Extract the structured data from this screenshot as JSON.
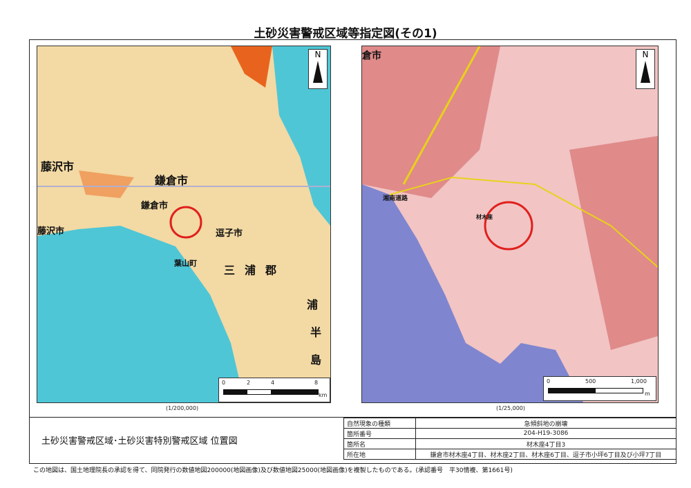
{
  "title": "土砂災害警戒区域等指定図(その1)",
  "left_map": {
    "scale_ratio": "(1/200,000)",
    "scale_ticks": [
      "0",
      "2",
      "4",
      "8"
    ],
    "scale_unit": "km",
    "north": "N",
    "labels": [
      "藤沢市",
      "鎌倉市",
      "鎌倉市",
      "藤沢市",
      "逗子市",
      "葉山町",
      "三",
      "浦",
      "郡",
      "浦",
      "半",
      "島"
    ],
    "colors": {
      "sea": "#4ec6d6",
      "land": "#f3d9a4",
      "urban": "#e8641e"
    }
  },
  "right_map": {
    "scale_ratio": "(1/25,000)",
    "scale_ticks": [
      "0",
      "500",
      "1,000"
    ],
    "scale_unit": "m",
    "north": "N",
    "labels": [
      "倉市",
      "湘南道路",
      "材木座"
    ],
    "colors": {
      "sea": "#7f86cf",
      "land": "#f2c4c4",
      "urban": "#d9534f"
    }
  },
  "marker_color": "#e0201c",
  "subtitle": "土砂災害警戒区域･土砂災害特別警戒区域 位置図",
  "info_table": [
    {
      "key": "自然現象の種類",
      "value": "急傾斜地の崩壊"
    },
    {
      "key": "箇所番号",
      "value": "204-H19-3086"
    },
    {
      "key": "箇所名",
      "value": "材木座4丁目3"
    },
    {
      "key": "所在地",
      "value": "鎌倉市材木座4丁目、材木座2丁目、材木座6丁目、逗子市小坪6丁目及び小坪7丁目"
    }
  ],
  "footer": "この地図は、国土地理院長の承認を得て、同院発行の数値地図200000(地図画像)及び数値地図25000(地図画像)を複製したものである。(承認番号　平30情複、第1661号)"
}
